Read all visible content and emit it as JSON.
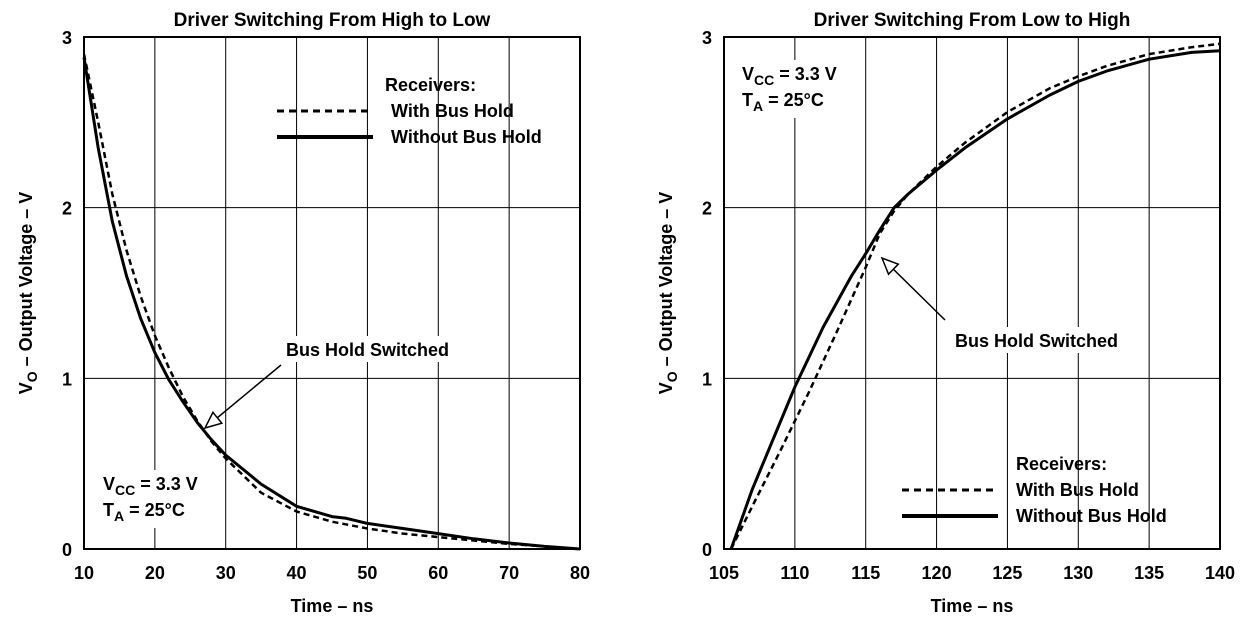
{
  "chart_data": [
    {
      "type": "line",
      "title": "Driver Switching From High to Low",
      "xlabel": "Time – ns",
      "ylabel_main": "V",
      "ylabel_sub": "O",
      "ylabel_rest": " – Output Voltage – V",
      "xlim": [
        10,
        80
      ],
      "ylim": [
        0,
        3
      ],
      "xticks": [
        10,
        20,
        30,
        40,
        50,
        60,
        70,
        80
      ],
      "yticks": [
        0,
        1,
        2,
        3
      ],
      "grid": true,
      "legend": {
        "title": "Receivers:",
        "placement": "top-right",
        "entries": [
          "With Bus Hold",
          "Without Bus Hold"
        ]
      },
      "annotation": "Bus Hold Switched",
      "conditions": [
        {
          "main": "V",
          "sub": "CC",
          "rest": " = 3.3 V"
        },
        {
          "main": "T",
          "sub": "A",
          "rest": " = 25°C"
        }
      ],
      "series": [
        {
          "name": "With Bus Hold",
          "style": "dashed",
          "x": [
            10,
            12,
            14,
            16,
            18,
            20,
            22,
            24,
            26,
            28,
            30,
            35,
            40,
            45,
            50,
            55,
            60,
            65,
            70,
            75,
            80
          ],
          "y": [
            2.9,
            2.5,
            2.08,
            1.75,
            1.48,
            1.25,
            1.06,
            0.89,
            0.75,
            0.63,
            0.53,
            0.33,
            0.22,
            0.16,
            0.12,
            0.09,
            0.07,
            0.05,
            0.03,
            0.015,
            0.0
          ]
        },
        {
          "name": "Without Bus Hold",
          "style": "solid",
          "x": [
            10,
            12,
            14,
            16,
            18,
            20,
            22,
            24,
            26,
            28,
            30,
            35,
            40,
            45,
            47,
            50,
            55,
            60,
            65,
            70,
            75,
            80
          ],
          "y": [
            2.88,
            2.35,
            1.92,
            1.6,
            1.35,
            1.15,
            0.99,
            0.86,
            0.74,
            0.64,
            0.55,
            0.38,
            0.25,
            0.19,
            0.18,
            0.15,
            0.12,
            0.09,
            0.06,
            0.035,
            0.015,
            0.0
          ]
        }
      ]
    },
    {
      "type": "line",
      "title": "Driver Switching From Low to High",
      "xlabel": "Time – ns",
      "ylabel_main": "V",
      "ylabel_sub": "O",
      "ylabel_rest": " – Output Voltage – V",
      "xlim": [
        105,
        140
      ],
      "ylim": [
        0,
        3
      ],
      "xticks": [
        105,
        110,
        115,
        120,
        125,
        130,
        135,
        140
      ],
      "yticks": [
        0,
        1,
        2,
        3
      ],
      "grid": true,
      "legend": {
        "title": "Receivers:",
        "placement": "bottom-right",
        "entries": [
          "With Bus Hold",
          "Without Bus Hold"
        ]
      },
      "annotation": "Bus Hold Switched",
      "conditions": [
        {
          "main": "V",
          "sub": "CC",
          "rest": " = 3.3 V"
        },
        {
          "main": "T",
          "sub": "A",
          "rest": " = 25°C"
        }
      ],
      "series": [
        {
          "name": "With Bus Hold",
          "style": "dashed",
          "x": [
            105.5,
            107,
            109,
            111,
            113,
            115,
            116,
            117,
            118,
            120,
            122,
            125,
            128,
            130,
            132,
            135,
            138,
            140
          ],
          "y": [
            0.0,
            0.25,
            0.58,
            0.92,
            1.28,
            1.65,
            1.85,
            1.98,
            2.08,
            2.24,
            2.38,
            2.56,
            2.7,
            2.77,
            2.83,
            2.9,
            2.94,
            2.96
          ]
        },
        {
          "name": "Without Bus Hold",
          "style": "solid",
          "x": [
            105.5,
            107,
            109,
            110,
            112,
            114,
            115,
            116,
            117,
            118,
            120,
            122,
            125,
            128,
            130,
            132,
            135,
            138,
            140
          ],
          "y": [
            0.0,
            0.35,
            0.75,
            0.95,
            1.3,
            1.6,
            1.73,
            1.87,
            2.0,
            2.08,
            2.22,
            2.35,
            2.52,
            2.66,
            2.74,
            2.8,
            2.87,
            2.91,
            2.92
          ]
        }
      ]
    }
  ]
}
